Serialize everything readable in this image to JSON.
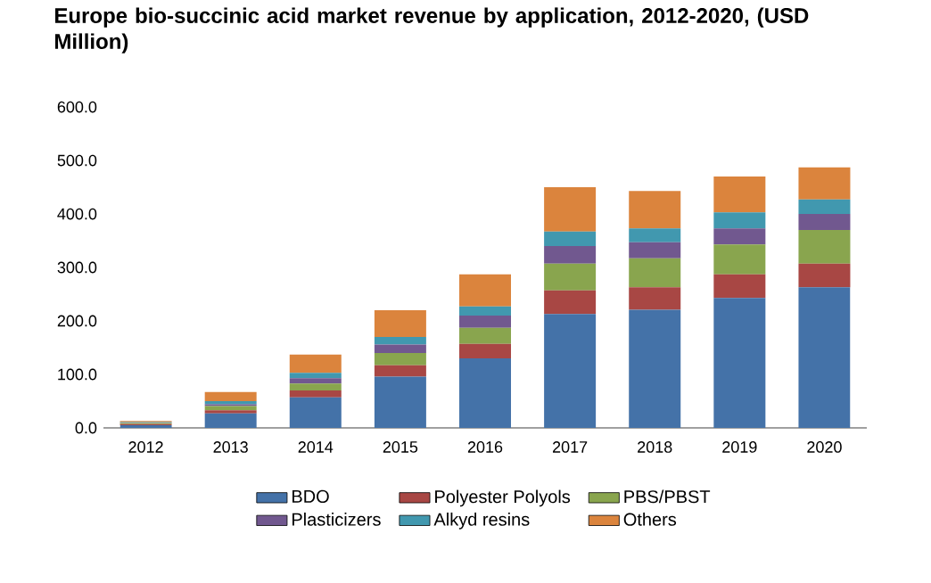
{
  "chart_data": {
    "type": "bar",
    "stacked": true,
    "title": "Europe bio-succinic acid market revenue by application, 2012-2020, (USD Million)",
    "categories": [
      "2012",
      "2013",
      "2014",
      "2015",
      "2016",
      "2017",
      "2018",
      "2019",
      "2020"
    ],
    "series": [
      {
        "name": "BDO",
        "color": "#4472a8",
        "values": [
          5,
          27,
          57,
          96,
          130,
          213,
          221,
          243,
          263
        ]
      },
      {
        "name": "Polyester Polyols",
        "color": "#a84744",
        "values": [
          2,
          6,
          13,
          21,
          27,
          44,
          42,
          44,
          44
        ]
      },
      {
        "name": "PBS/PBST",
        "color": "#89a54e",
        "values": [
          2,
          8,
          13,
          23,
          30,
          50,
          54,
          56,
          63
        ]
      },
      {
        "name": "Plasticizers",
        "color": "#71588f",
        "values": [
          1,
          3,
          10,
          16,
          23,
          33,
          30,
          30,
          30
        ]
      },
      {
        "name": "Alkyd resins",
        "color": "#4198af",
        "values": [
          1,
          6,
          10,
          14,
          17,
          27,
          26,
          30,
          27
        ]
      },
      {
        "name": "Others",
        "color": "#db843d",
        "values": [
          2,
          17,
          34,
          50,
          60,
          83,
          70,
          67,
          60
        ]
      }
    ],
    "ylim": [
      0,
      600
    ],
    "yticks": [
      {
        "value": 0,
        "label": "0.0"
      },
      {
        "value": 100,
        "label": "100.0"
      },
      {
        "value": 200,
        "label": "200.0"
      },
      {
        "value": 300,
        "label": "300.0"
      },
      {
        "value": 400,
        "label": "400.0"
      },
      {
        "value": 500,
        "label": "500.0"
      },
      {
        "value": 600,
        "label": "600.0"
      }
    ],
    "legend": "bottom"
  }
}
